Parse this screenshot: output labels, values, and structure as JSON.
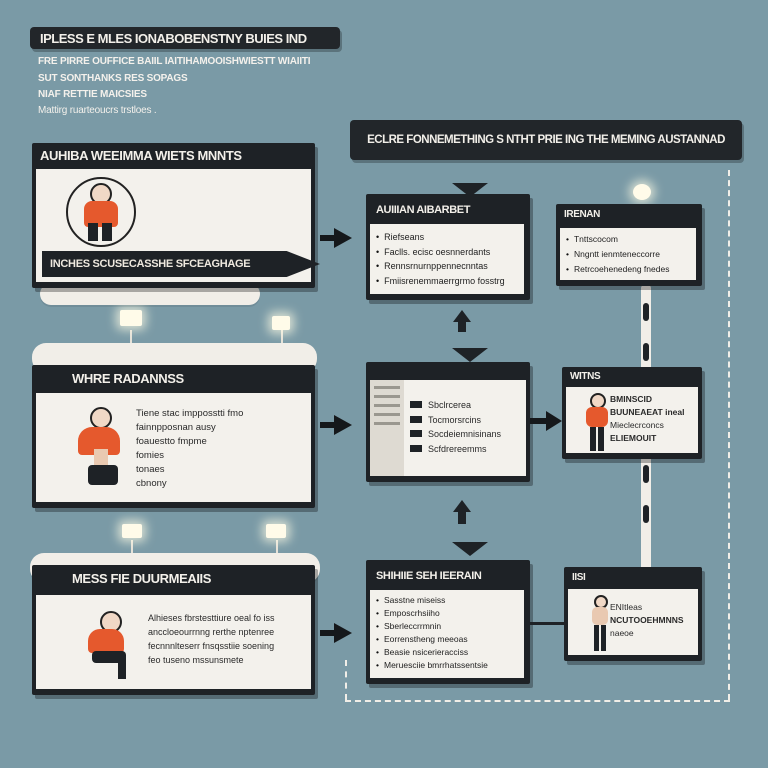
{
  "header": {
    "title": "IPLESS E MLES IONABOBENSTNY BUIES IND",
    "subtitle_lines": [
      "FRE PIRRE OUFFICE BAIIL IAITIHAMOOISHWIESTT WIAIITI",
      "SUT SONTHANKS RES SOPAGS",
      "NIAF RETTIE MAICSIES",
      "Mattirg ruarteoucrs trstloes ."
    ]
  },
  "banner": {
    "title": "ECLRE FONNEMETHING S NTHT PRIE ING THE MEMING AUSTANNAD"
  },
  "left_cards": [
    {
      "title": "AUHIBA WEEIMMA WIETS MNNTS",
      "ribbon": "INCHES SCUSECASSHE SFCEAGHAGE",
      "lines": []
    },
    {
      "title": "WHRE RADANNSS",
      "ribbon": "",
      "lines": [
        "Tiene stac impposstti fmo",
        "fainnpposnan ausy",
        "foauestto fmpme",
        "fomies",
        "tonaes",
        "cbnony"
      ]
    },
    {
      "title": "MESS FIE DUURMEAIIS",
      "ribbon": "",
      "lines": [
        "Alhieses fbrstesttiure oeal fo iss",
        "anccloeourrnng rerthe nptenree",
        "fecnnnlteserr fnsqsstiie soening",
        "feo tuseno mssunsmete"
      ]
    }
  ],
  "center_cards": [
    {
      "title": "AUIIIAN AIBARBET",
      "items": [
        "Riefseans",
        "Faclls. ecisc oesnnerdants",
        "Rennsrnurnppennecnntas",
        "Fmiisrenemmaerrgrmo fosstrg"
      ]
    },
    {
      "title": "",
      "items": [
        "Sbclrcerea",
        "Tocmorsrcins",
        "Socdeiemnisinans",
        "Scfdrereemms"
      ]
    },
    {
      "title": "SHIHIIE SEH IEERAIN",
      "items": [
        "Sasstne miseiss",
        "Emposcrhsiiho",
        "Sberleccrrmnin",
        "Eorrenstheng meeoas",
        "Beasie nsicerieracciss",
        "Meruesciie bmrrhatssentsie"
      ]
    }
  ],
  "right_cards": [
    {
      "title": "IRENAN",
      "items": [
        "Tnttscocom",
        "Nngntt ienmteneccorre",
        "Retrcoehenedeng fnedes"
      ]
    },
    {
      "title": "WITNS",
      "lines": [
        "BMINSCID",
        "BUUNEAEAT ineal",
        "Mieclecrconcs",
        "ELIEMOUIT"
      ]
    },
    {
      "title": "IISI",
      "lines": [
        "ENItleas",
        "NCUTOOEHMNNS",
        "naeoe"
      ]
    }
  ],
  "colors": {
    "background": "#7a9aa6",
    "card_dark": "#1e2226",
    "card_light": "#f3f1ec",
    "accent_orange": "#e5592d"
  }
}
